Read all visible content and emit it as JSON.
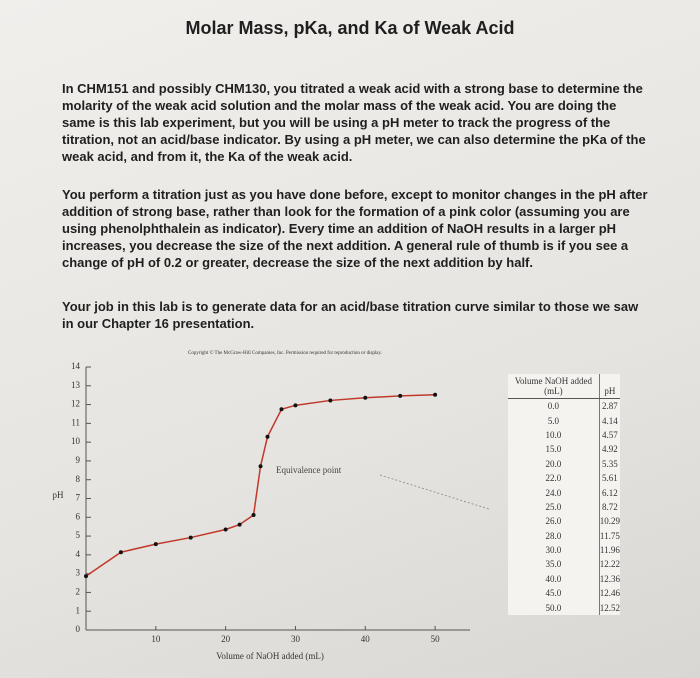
{
  "title": "Molar Mass, pKa, and Ka of Weak Acid",
  "paragraphs": [
    "In CHM151 and possibly CHM130, you titrated a weak acid with a strong base to determine the molarity of the weak acid solution and the molar mass of the weak acid.  You are doing the same is this lab experiment, but you will be using a pH meter to track the progress of the titration, not an acid/base indicator.  By using a pH meter, we can also determine the pKa of the weak acid, and from it, the Ka of the weak acid.",
    "You perform a titration just as you have done before, except to monitor changes in the pH after addition of strong base, rather than look for the formation of a pink color (assuming you are using phenolphthalein as indicator).  Every time an addition of NaOH results in a larger pH increases, you decrease the size of the next addition.  A general rule of thumb is if you see a change of pH of 0.2 or greater, decrease the size of the next addition by half.",
    "Your job in this lab is to generate data for an acid/base titration curve similar to those we saw in our Chapter 16 presentation."
  ],
  "chart_data": {
    "type": "line",
    "caption": "Copyright © The McGraw-Hill Companies, Inc. Permission required for reproduction or display.",
    "x_label": "Volume of NaOH added (mL)",
    "y_label": "pH",
    "annotation": "Equivalence point",
    "x": [
      0,
      5,
      10,
      15,
      20,
      22,
      24,
      25,
      26,
      28,
      30,
      35,
      40,
      45,
      50
    ],
    "values": [
      2.87,
      4.14,
      4.57,
      4.92,
      5.35,
      5.61,
      6.12,
      8.72,
      10.29,
      11.75,
      11.96,
      12.22,
      12.36,
      12.46,
      12.52
    ],
    "color": "#c0392b",
    "xlim": [
      0,
      55
    ],
    "ylim": [
      0,
      14
    ],
    "xticks": [
      10,
      20,
      30,
      40,
      50
    ],
    "yticks": [
      0,
      1,
      2,
      3,
      4,
      5,
      6,
      7,
      8,
      9,
      10,
      11,
      12,
      13,
      14
    ]
  },
  "table": {
    "header": [
      "Volume NaOH added (mL)",
      "pH"
    ],
    "rows": [
      [
        "0.0",
        "2.87"
      ],
      [
        "5.0",
        "4.14"
      ],
      [
        "10.0",
        "4.57"
      ],
      [
        "15.0",
        "4.92"
      ],
      [
        "20.0",
        "5.35"
      ],
      [
        "22.0",
        "5.61"
      ],
      [
        "24.0",
        "6.12"
      ],
      [
        "25.0",
        "8.72"
      ],
      [
        "26.0",
        "10.29"
      ],
      [
        "28.0",
        "11.75"
      ],
      [
        "30.0",
        "11.96"
      ],
      [
        "35.0",
        "12.22"
      ],
      [
        "40.0",
        "12.36"
      ],
      [
        "45.0",
        "12.46"
      ],
      [
        "50.0",
        "12.52"
      ]
    ]
  }
}
